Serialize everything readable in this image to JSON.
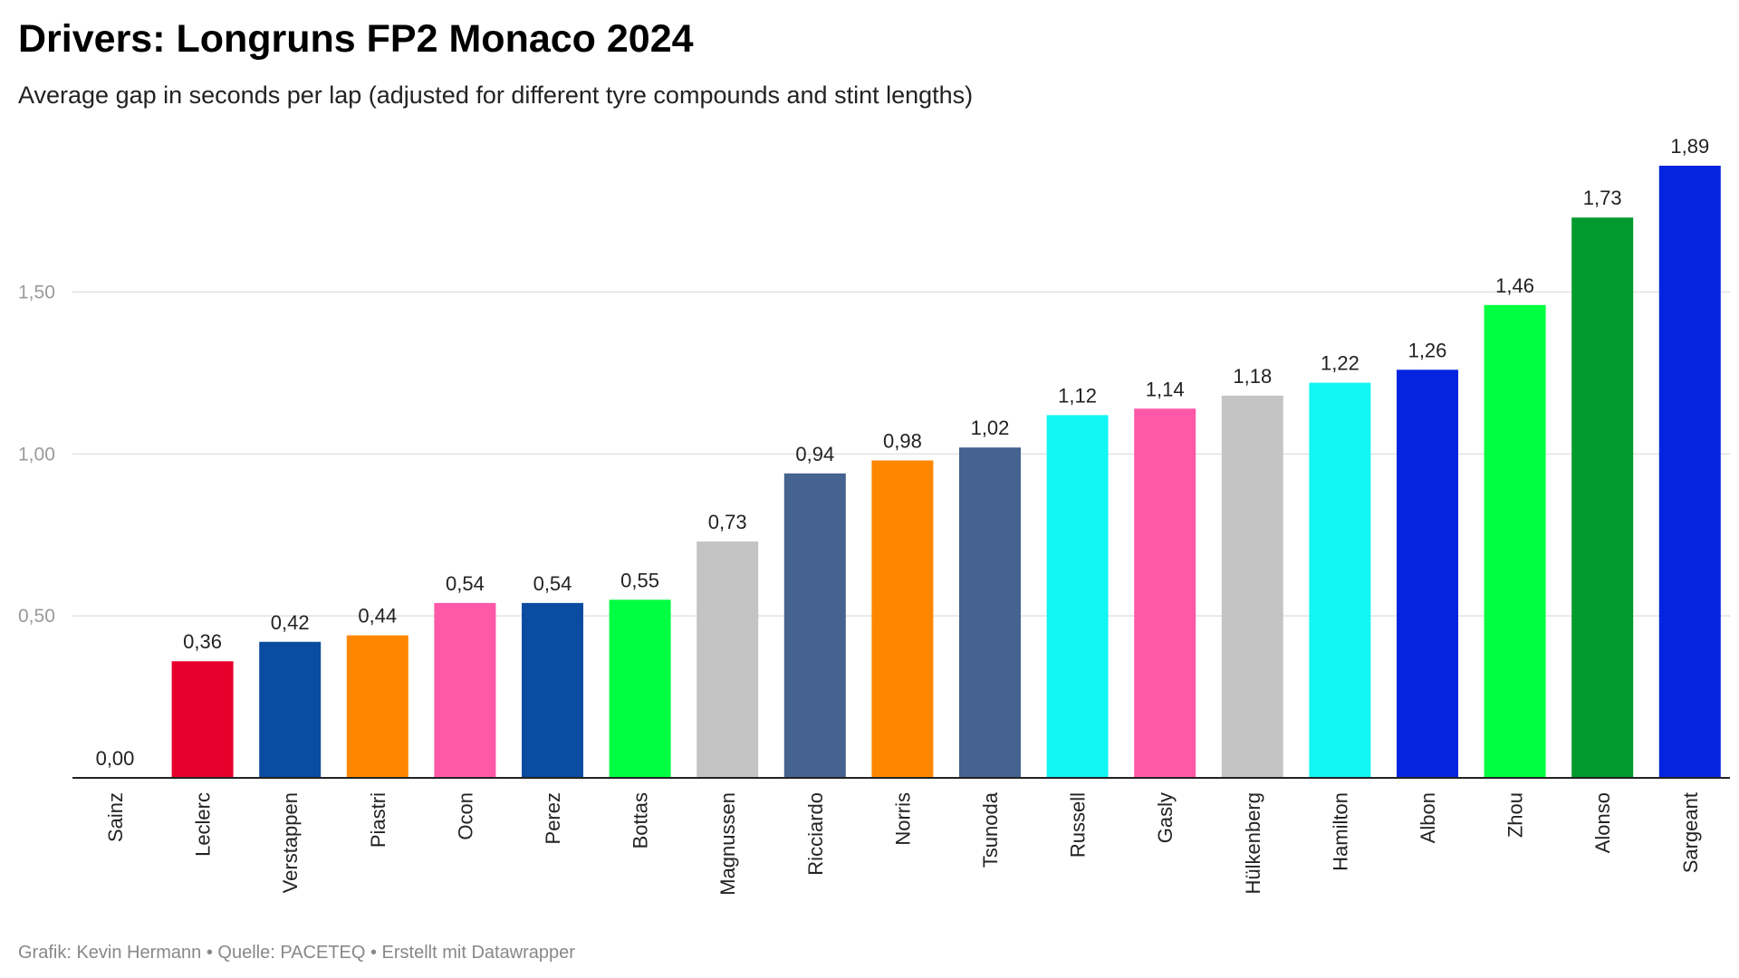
{
  "header": {
    "title": "Drivers: Longruns FP2 Monaco 2024",
    "subtitle": "Average gap in seconds per lap (adjusted for different tyre compounds and stint lengths)"
  },
  "footer": {
    "credit": "Grafik: Kevin Hermann • Quelle: PACETEQ • Erstellt mit Datawrapper"
  },
  "chart_data": {
    "type": "bar",
    "title": "Drivers: Longruns FP2 Monaco 2024",
    "subtitle": "Average gap in seconds per lap (adjusted for different tyre compounds and stint lengths)",
    "xlabel": "",
    "ylabel": "",
    "ylim": [
      0,
      1.89
    ],
    "yticks": [
      0.5,
      1.0,
      1.5
    ],
    "ytick_labels": [
      "0,50",
      "1,00",
      "1,50"
    ],
    "grid": true,
    "legend": "none",
    "categories": [
      "Sainz",
      "Leclerc",
      "Verstappen",
      "Piastri",
      "Ocon",
      "Perez",
      "Bottas",
      "Magnussen",
      "Ricciardo",
      "Norris",
      "Tsunoda",
      "Russell",
      "Gasly",
      "Hülkenberg",
      "Hamilton",
      "Albon",
      "Zhou",
      "Alonso",
      "Sargeant"
    ],
    "values": [
      0.0,
      0.36,
      0.42,
      0.44,
      0.54,
      0.54,
      0.55,
      0.73,
      0.94,
      0.98,
      1.02,
      1.12,
      1.14,
      1.18,
      1.22,
      1.26,
      1.46,
      1.73,
      1.89
    ],
    "value_labels": [
      "0,00",
      "0,36",
      "0,42",
      "0,44",
      "0,54",
      "0,54",
      "0,55",
      "0,73",
      "0,94",
      "0,98",
      "1,02",
      "1,12",
      "1,14",
      "1,18",
      "1,22",
      "1,26",
      "1,46",
      "1,73",
      "1,89"
    ],
    "colors": [
      "#e8002d",
      "#e8002d",
      "#0a4ca0",
      "#ff8700",
      "#ff58a8",
      "#0a4ca0",
      "#00ff41",
      "#c4c4c4",
      "#46628f",
      "#ff8700",
      "#46628f",
      "#14f5f5",
      "#ff58a8",
      "#c4c4c4",
      "#14f5f5",
      "#0424e0",
      "#00ff41",
      "#009b2e",
      "#0424e0"
    ]
  }
}
